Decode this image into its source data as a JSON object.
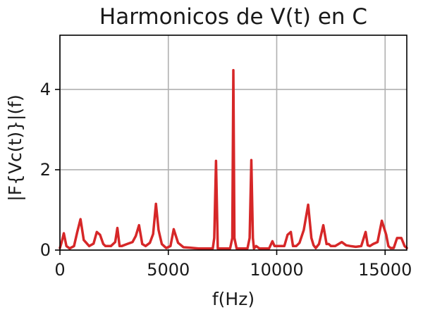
{
  "chart_data": {
    "type": "line",
    "title": "Harmonicos de V(t) en C",
    "xlabel": "f(Hz)",
    "ylabel": "|F{Vc(t)}|(f)",
    "xlim": [
      0,
      16000
    ],
    "ylim": [
      0,
      5.35
    ],
    "xticks": [
      0,
      5000,
      10000,
      15000
    ],
    "yticks": [
      0,
      2,
      4
    ],
    "grid": true,
    "line_color": "#d62728",
    "series": [
      {
        "x": [
          0,
          80,
          180,
          300,
          450,
          650,
          800,
          950,
          1100,
          1350,
          1550,
          1700,
          1850,
          2000,
          2100,
          2350,
          2550,
          2650,
          2750,
          2850,
          3100,
          3350,
          3500,
          3650,
          3800,
          3950,
          4150,
          4300,
          4430,
          4550,
          4700,
          4900,
          5100,
          5250,
          5450,
          5700,
          6000,
          6400,
          6800,
          7050,
          7120,
          7200,
          7280,
          7350,
          7700,
          7850,
          7950,
          8000,
          8050,
          8150,
          8300,
          8500,
          8650,
          8750,
          8830,
          8900,
          8950,
          9050,
          9200,
          9400,
          9650,
          9800,
          9900,
          10050,
          10350,
          10500,
          10650,
          10750,
          10900,
          11050,
          11250,
          11450,
          11600,
          11700,
          11800,
          11950,
          12150,
          12300,
          12400,
          12500,
          12700,
          13000,
          13200,
          13400,
          13650,
          13900,
          14100,
          14200,
          14300,
          14450,
          14650,
          14850,
          15050,
          15150,
          15250,
          15400,
          15550,
          15750,
          15900,
          16000
        ],
        "y": [
          0.05,
          0.2,
          0.42,
          0.1,
          0.04,
          0.1,
          0.45,
          0.77,
          0.25,
          0.1,
          0.16,
          0.45,
          0.38,
          0.15,
          0.1,
          0.1,
          0.2,
          0.55,
          0.1,
          0.1,
          0.15,
          0.2,
          0.35,
          0.62,
          0.15,
          0.1,
          0.18,
          0.4,
          1.15,
          0.5,
          0.15,
          0.05,
          0.1,
          0.52,
          0.18,
          0.07,
          0.06,
          0.04,
          0.04,
          0.04,
          0.3,
          2.22,
          0.04,
          0.04,
          0.04,
          0.04,
          0.3,
          4.48,
          0.3,
          0.04,
          0.04,
          0.04,
          0.04,
          0.3,
          2.24,
          0.3,
          0.04,
          0.1,
          0.04,
          0.04,
          0.04,
          0.22,
          0.1,
          0.1,
          0.1,
          0.38,
          0.45,
          0.1,
          0.1,
          0.18,
          0.5,
          1.13,
          0.3,
          0.12,
          0.05,
          0.15,
          0.62,
          0.15,
          0.15,
          0.1,
          0.1,
          0.2,
          0.12,
          0.1,
          0.08,
          0.1,
          0.45,
          0.12,
          0.1,
          0.15,
          0.2,
          0.73,
          0.38,
          0.1,
          0.05,
          0.05,
          0.3,
          0.3,
          0.1,
          0.05
        ]
      }
    ]
  }
}
